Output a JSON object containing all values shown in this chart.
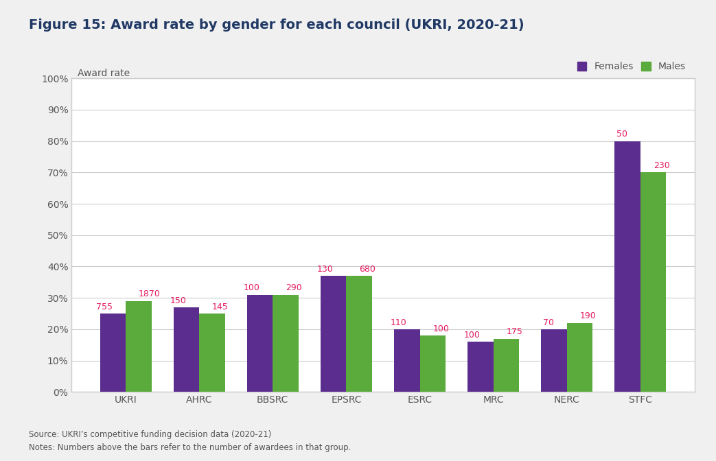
{
  "title": "Figure 15: Award rate by gender for each council (UKRI, 2020-21)",
  "ylabel": "Award rate",
  "categories": [
    "UKRI",
    "AHRC",
    "BBSRC",
    "EPSRC",
    "ESRC",
    "MRC",
    "NERC",
    "STFC"
  ],
  "females_values": [
    25,
    27,
    31,
    37,
    20,
    16,
    20,
    80
  ],
  "males_values": [
    29,
    25,
    31,
    37,
    18,
    17,
    22,
    70
  ],
  "females_labels": [
    755,
    150,
    100,
    130,
    110,
    100,
    70,
    50
  ],
  "males_labels": [
    1870,
    145,
    290,
    680,
    100,
    175,
    190,
    230
  ],
  "female_color": "#5b2d8e",
  "male_color": "#5aaa3c",
  "label_color": "#e5195e",
  "title_color": "#1f3864",
  "axis_label_color": "#555555",
  "tick_label_color": "#555555",
  "grid_color": "#cccccc",
  "box_facecolor": "#ffffff",
  "fig_facecolor": "#f0f0f0",
  "source_text": "Source: UKRI’s competitive funding decision data (2020-21)\nNotes: Numbers above the bars refer to the number of awardees in that group.",
  "legend_females": "Females",
  "legend_males": "Males",
  "ylim": [
    0,
    100
  ],
  "yticks": [
    0,
    10,
    20,
    30,
    40,
    50,
    60,
    70,
    80,
    90,
    100
  ],
  "bar_width": 0.35,
  "title_fontsize": 14,
  "ylabel_fontsize": 10,
  "tick_fontsize": 10,
  "label_fontsize": 9,
  "legend_fontsize": 10,
  "source_fontsize": 8.5
}
